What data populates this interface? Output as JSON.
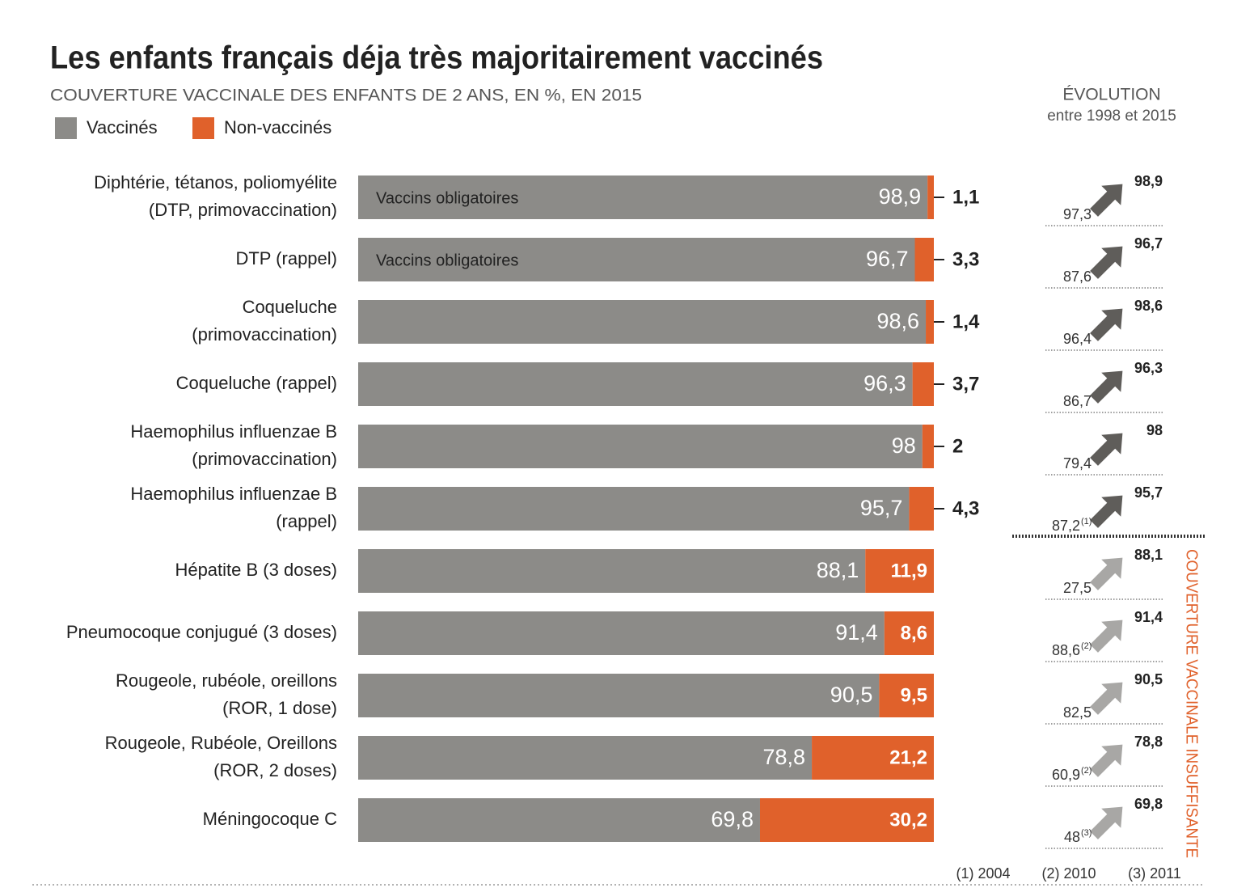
{
  "chart_data": {
    "type": "stacked-bar-horizontal",
    "title": "Les enfants français déja très majoritairement vaccinés",
    "subtitle": "COUVERTURE VACCINALE DES ENFANTS DE 2 ANS, EN %, EN 2015",
    "categories": [
      [
        "Diphtérie, tétanos, poliomyélite",
        "(DTP, primovaccination)"
      ],
      [
        "DTP (rappel)"
      ],
      [
        "Coqueluche",
        "(primovaccination)"
      ],
      [
        "Coqueluche (rappel)"
      ],
      [
        "Haemophilus influenzae B",
        "(primovaccination)"
      ],
      [
        "Haemophilus influenzae B",
        "(rappel)"
      ],
      [
        "Hépatite B (3 doses)"
      ],
      [
        "Pneumocoque conjugué (3 doses)"
      ],
      [
        "Rougeole, rubéole, oreillons",
        "(ROR, 1 dose)"
      ],
      [
        "Rougeole, Rubéole, Oreillons",
        "(ROR, 2 doses)"
      ],
      [
        "Méningocoque C"
      ]
    ],
    "bar_notes": [
      "Vaccins obligatoires",
      "Vaccins obligatoires",
      null,
      null,
      null,
      null,
      null,
      null,
      null,
      null,
      null
    ],
    "xlim": [
      0,
      100
    ],
    "series": [
      {
        "name": "Vaccinés",
        "color": "#8c8b88",
        "values": [
          98.9,
          96.7,
          98.6,
          96.3,
          98,
          95.7,
          88.1,
          91.4,
          90.5,
          78.8,
          69.8
        ],
        "value_labels": [
          "98,9",
          "96,7",
          "98,6",
          "96,3",
          "98",
          "95,7",
          "88,1",
          "91,4",
          "90,5",
          "78,8",
          "69,8"
        ]
      },
      {
        "name": "Non-vaccinés",
        "color": "#e0612b",
        "values": [
          1.1,
          3.3,
          1.4,
          3.7,
          2,
          4.3,
          11.9,
          8.6,
          9.5,
          21.2,
          30.2
        ],
        "value_labels": [
          "1,1",
          "3,3",
          "1,4",
          "3,7",
          "2",
          "4,3",
          "11,9",
          "8,6",
          "9,5",
          "21,2",
          "30,2"
        ]
      }
    ],
    "evolution": {
      "title": "ÉVOLUTION",
      "subtitle": "entre 1998 et 2015",
      "start_values": [
        97.3,
        87.6,
        96.4,
        86.7,
        79.4,
        87.2,
        27.5,
        88.6,
        82.5,
        60.9,
        48
      ],
      "start_labels": [
        "97,3",
        "87,6",
        "96,4",
        "86,7",
        "79,4",
        "87,2",
        "27,5",
        "88,6",
        "82,5",
        "60,9",
        "48"
      ],
      "start_notes": [
        null,
        null,
        null,
        null,
        null,
        "(1)",
        null,
        "(2)",
        null,
        "(2)",
        "(3)"
      ],
      "arrow_colors": [
        "#5f5d5a",
        "#5f5d5a",
        "#5f5d5a",
        "#5f5d5a",
        "#5f5d5a",
        "#5f5d5a",
        "#a8a7a5",
        "#a8a7a5",
        "#a8a7a5",
        "#a8a7a5",
        "#a8a7a5"
      ],
      "group_label": "COUVERTURE VACCINALE INSUFFISANTE",
      "group_color": "#e0612b"
    },
    "footnotes": [
      "(1) 2004",
      "(2) 2010",
      "(3) 2011"
    ]
  }
}
